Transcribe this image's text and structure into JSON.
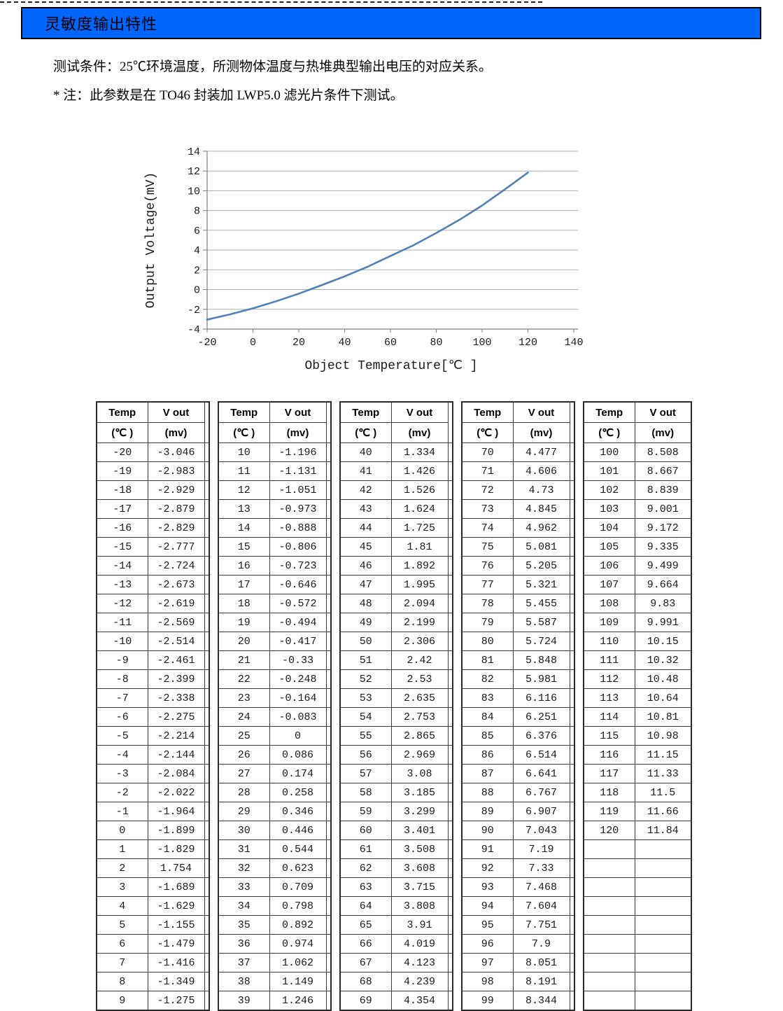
{
  "colors": {
    "title_bar": "#0066fe",
    "curve": "#4f81bd"
  },
  "header": {
    "title": "灵敏度输出特性"
  },
  "notes": {
    "condition": "测试条件：25℃环境温度，所测物体温度与热堆典型输出电压的对应关系。",
    "filter_note": "* 注：此参数是在 TO46 封装加 LWP5.0 滤光片条件下测试。"
  },
  "chart_data": {
    "type": "line",
    "title": "",
    "xlabel": "Object Temperature[℃ ]",
    "ylabel": "Output Voltage(mV)",
    "x": [
      -20,
      -10,
      0,
      10,
      20,
      30,
      40,
      50,
      60,
      70,
      80,
      90,
      100,
      110,
      120
    ],
    "y": [
      -3.046,
      -2.514,
      -1.899,
      -1.196,
      -0.417,
      0.446,
      1.334,
      2.306,
      3.401,
      4.477,
      5.724,
      7.043,
      8.508,
      10.15,
      11.84
    ],
    "xlim": [
      -20,
      140
    ],
    "ylim": [
      -4,
      14
    ],
    "xticks": [
      -20,
      0,
      20,
      40,
      60,
      80,
      100,
      120,
      140
    ],
    "yticks": [
      -4,
      -2,
      0,
      2,
      4,
      6,
      8,
      10,
      12,
      14
    ],
    "grid": "horizontal",
    "legend": "none",
    "line_color": "#4f81bd"
  },
  "table": {
    "col_headers": [
      "Temp",
      "V out"
    ],
    "col_subheaders": [
      "(℃ )",
      "(mv)"
    ],
    "groups": [
      {
        "rows": [
          [
            "-20",
            "-3.046"
          ],
          [
            "-19",
            "-2.983"
          ],
          [
            "-18",
            "-2.929"
          ],
          [
            "-17",
            "-2.879"
          ],
          [
            "-16",
            "-2.829"
          ],
          [
            "-15",
            "-2.777"
          ],
          [
            "-14",
            "-2.724"
          ],
          [
            "-13",
            "-2.673"
          ],
          [
            "-12",
            "-2.619"
          ],
          [
            "-11",
            "-2.569"
          ],
          [
            "-10",
            "-2.514"
          ],
          [
            "-9",
            "-2.461"
          ],
          [
            "-8",
            "-2.399"
          ],
          [
            "-7",
            "-2.338"
          ],
          [
            "-6",
            "-2.275"
          ],
          [
            "-5",
            "-2.214"
          ],
          [
            "-4",
            "-2.144"
          ],
          [
            "-3",
            "-2.084"
          ],
          [
            "-2",
            "-2.022"
          ],
          [
            "-1",
            "-1.964"
          ],
          [
            "0",
            "-1.899"
          ],
          [
            "1",
            "-1.829"
          ],
          [
            "2",
            "1.754"
          ],
          [
            "3",
            "-1.689"
          ],
          [
            "4",
            "-1.629"
          ],
          [
            "5",
            "-1.155"
          ],
          [
            "6",
            "-1.479"
          ],
          [
            "7",
            "-1.416"
          ],
          [
            "8",
            "-1.349"
          ],
          [
            "9",
            "-1.275"
          ]
        ]
      },
      {
        "rows": [
          [
            "10",
            "-1.196"
          ],
          [
            "11",
            "-1.131"
          ],
          [
            "12",
            "-1.051"
          ],
          [
            "13",
            "-0.973"
          ],
          [
            "14",
            "-0.888"
          ],
          [
            "15",
            "-0.806"
          ],
          [
            "16",
            "-0.723"
          ],
          [
            "17",
            "-0.646"
          ],
          [
            "18",
            "-0.572"
          ],
          [
            "19",
            "-0.494"
          ],
          [
            "20",
            "-0.417"
          ],
          [
            "21",
            "-0.33"
          ],
          [
            "22",
            "-0.248"
          ],
          [
            "23",
            "-0.164"
          ],
          [
            "24",
            "-0.083"
          ],
          [
            "25",
            "0"
          ],
          [
            "26",
            "0.086"
          ],
          [
            "27",
            "0.174"
          ],
          [
            "28",
            "0.258"
          ],
          [
            "29",
            "0.346"
          ],
          [
            "30",
            "0.446"
          ],
          [
            "31",
            "0.544"
          ],
          [
            "32",
            "0.623"
          ],
          [
            "33",
            "0.709"
          ],
          [
            "34",
            "0.798"
          ],
          [
            "35",
            "0.892"
          ],
          [
            "36",
            "0.974"
          ],
          [
            "37",
            "1.062"
          ],
          [
            "38",
            "1.149"
          ],
          [
            "39",
            "1.246"
          ]
        ]
      },
      {
        "rows": [
          [
            "40",
            "1.334"
          ],
          [
            "41",
            "1.426"
          ],
          [
            "42",
            "1.526"
          ],
          [
            "43",
            "1.624"
          ],
          [
            "44",
            "1.725"
          ],
          [
            "45",
            "1.81"
          ],
          [
            "46",
            "1.892"
          ],
          [
            "47",
            "1.995"
          ],
          [
            "48",
            "2.094"
          ],
          [
            "49",
            "2.199"
          ],
          [
            "50",
            "2.306"
          ],
          [
            "51",
            "2.42"
          ],
          [
            "52",
            "2.53"
          ],
          [
            "53",
            "2.635"
          ],
          [
            "54",
            "2.753"
          ],
          [
            "55",
            "2.865"
          ],
          [
            "56",
            "2.969"
          ],
          [
            "57",
            "3.08"
          ],
          [
            "58",
            "3.185"
          ],
          [
            "59",
            "3.299"
          ],
          [
            "60",
            "3.401"
          ],
          [
            "61",
            "3.508"
          ],
          [
            "62",
            "3.608"
          ],
          [
            "63",
            "3.715"
          ],
          [
            "64",
            "3.808"
          ],
          [
            "65",
            "3.91"
          ],
          [
            "66",
            "4.019"
          ],
          [
            "67",
            "4.123"
          ],
          [
            "68",
            "4.239"
          ],
          [
            "69",
            "4.354"
          ]
        ]
      },
      {
        "rows": [
          [
            "70",
            "4.477"
          ],
          [
            "71",
            "4.606"
          ],
          [
            "72",
            "4.73"
          ],
          [
            "73",
            "4.845"
          ],
          [
            "74",
            "4.962"
          ],
          [
            "75",
            "5.081"
          ],
          [
            "76",
            "5.205"
          ],
          [
            "77",
            "5.321"
          ],
          [
            "78",
            "5.455"
          ],
          [
            "79",
            "5.587"
          ],
          [
            "80",
            "5.724"
          ],
          [
            "81",
            "5.848"
          ],
          [
            "82",
            "5.981"
          ],
          [
            "83",
            "6.116"
          ],
          [
            "84",
            "6.251"
          ],
          [
            "85",
            "6.376"
          ],
          [
            "86",
            "6.514"
          ],
          [
            "87",
            "6.641"
          ],
          [
            "88",
            "6.767"
          ],
          [
            "89",
            "6.907"
          ],
          [
            "90",
            "7.043"
          ],
          [
            "91",
            "7.19"
          ],
          [
            "92",
            "7.33"
          ],
          [
            "93",
            "7.468"
          ],
          [
            "94",
            "7.604"
          ],
          [
            "95",
            "7.751"
          ],
          [
            "96",
            "7.9"
          ],
          [
            "97",
            "8.051"
          ],
          [
            "98",
            "8.191"
          ],
          [
            "99",
            "8.344"
          ]
        ]
      },
      {
        "rows": [
          [
            "100",
            "8.508"
          ],
          [
            "101",
            "8.667"
          ],
          [
            "102",
            "8.839"
          ],
          [
            "103",
            "9.001"
          ],
          [
            "104",
            "9.172"
          ],
          [
            "105",
            "9.335"
          ],
          [
            "106",
            "9.499"
          ],
          [
            "107",
            "9.664"
          ],
          [
            "108",
            "9.83"
          ],
          [
            "109",
            "9.991"
          ],
          [
            "110",
            "10.15"
          ],
          [
            "111",
            "10.32"
          ],
          [
            "112",
            "10.48"
          ],
          [
            "113",
            "10.64"
          ],
          [
            "114",
            "10.81"
          ],
          [
            "115",
            "10.98"
          ],
          [
            "116",
            "11.15"
          ],
          [
            "117",
            "11.33"
          ],
          [
            "118",
            "11.5"
          ],
          [
            "119",
            "11.66"
          ],
          [
            "120",
            "11.84"
          ],
          [
            "",
            ""
          ],
          [
            "",
            ""
          ],
          [
            "",
            ""
          ],
          [
            "",
            ""
          ],
          [
            "",
            ""
          ],
          [
            "",
            ""
          ],
          [
            "",
            ""
          ],
          [
            "",
            ""
          ],
          [
            "",
            ""
          ]
        ]
      }
    ]
  }
}
